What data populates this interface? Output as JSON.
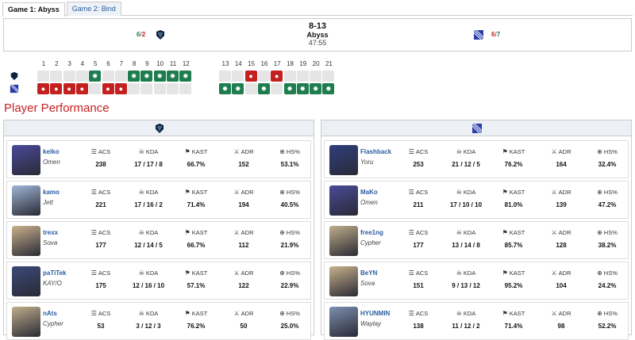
{
  "tabs": [
    {
      "label": "Game 1: Abyss",
      "active": true
    },
    {
      "label": "Game 2: Bind",
      "active": false
    }
  ],
  "header": {
    "left_score": "6",
    "left_score_sep": "/",
    "left_score_b": "2",
    "right_score": "6",
    "right_score_sep": "/",
    "right_score_b": "7",
    "score": "8-13",
    "map": "Abyss",
    "time": "47:55"
  },
  "rounds": {
    "numbers": [
      "1",
      "2",
      "3",
      "4",
      "5",
      "6",
      "7",
      "8",
      "9",
      "10",
      "11",
      "12",
      "13",
      "14",
      "15",
      "16",
      "17",
      "18",
      "19",
      "20",
      "21"
    ],
    "top": [
      "",
      "",
      "",
      "",
      "W",
      "",
      "",
      "W",
      "W",
      "W",
      "W",
      "W",
      "",
      "",
      "L",
      "",
      "L",
      "",
      "",
      "",
      ""
    ],
    "bottom": [
      "L",
      "L",
      "L",
      "L",
      "",
      "L",
      "L",
      "",
      "",
      "",
      "",
      "",
      "W",
      "W",
      "",
      "W",
      "",
      "W",
      "W",
      "W",
      "W"
    ]
  },
  "section_title": "Player Performance",
  "stat_labels": {
    "acs": "ACS",
    "kda": "KDA",
    "kast": "KAST",
    "adr": "ADR",
    "hs": "HS%"
  },
  "team_left": [
    {
      "name": "keiko",
      "agent": "Omen",
      "acs": "238",
      "k": "17",
      "d": "17",
      "a": "8",
      "kast": "66.7%",
      "adr": "152",
      "hs": "53.1%",
      "avatar_color": "#4a4a9a"
    },
    {
      "name": "kamo",
      "agent": "Jett",
      "acs": "221",
      "k": "17",
      "d": "16",
      "a": "2",
      "kast": "71.4%",
      "adr": "194",
      "hs": "40.5%",
      "avatar_color": "#9fb6d6"
    },
    {
      "name": "trexx",
      "agent": "Sova",
      "acs": "177",
      "k": "12",
      "d": "14",
      "a": "5",
      "kast": "66.7%",
      "adr": "112",
      "hs": "21.9%",
      "avatar_color": "#c9b28c"
    },
    {
      "name": "paTiTek",
      "agent": "KAY/O",
      "acs": "175",
      "k": "12",
      "d": "16",
      "a": "10",
      "kast": "57.1%",
      "adr": "122",
      "hs": "22.9%",
      "avatar_color": "#3b4a7a"
    },
    {
      "name": "nAts",
      "agent": "Cypher",
      "acs": "53",
      "k": "3",
      "d": "12",
      "a": "3",
      "kast": "76.2%",
      "adr": "50",
      "hs": "25.0%",
      "avatar_color": "#bfae8a"
    }
  ],
  "team_right": [
    {
      "name": "Flashback",
      "agent": "Yoru",
      "acs": "253",
      "k": "21",
      "d": "12",
      "a": "5",
      "kast": "76.2%",
      "adr": "164",
      "hs": "32.4%",
      "avatar_color": "#2f3f7f"
    },
    {
      "name": "MaKo",
      "agent": "Omen",
      "acs": "211",
      "k": "17",
      "d": "10",
      "a": "10",
      "kast": "81.0%",
      "adr": "139",
      "hs": "47.2%",
      "avatar_color": "#4a4a9a"
    },
    {
      "name": "free1ng",
      "agent": "Cypher",
      "acs": "177",
      "k": "13",
      "d": "14",
      "a": "8",
      "kast": "85.7%",
      "adr": "128",
      "hs": "38.2%",
      "avatar_color": "#bfae8a"
    },
    {
      "name": "BeYN",
      "agent": "Sova",
      "acs": "151",
      "k": "9",
      "d": "13",
      "a": "12",
      "kast": "95.2%",
      "adr": "104",
      "hs": "24.2%",
      "avatar_color": "#c9b28c"
    },
    {
      "name": "HYUNMIN",
      "agent": "Waylay",
      "acs": "138",
      "k": "11",
      "d": "12",
      "a": "2",
      "kast": "71.4%",
      "adr": "98",
      "hs": "52.2%",
      "avatar_color": "#7d8fb0"
    }
  ]
}
